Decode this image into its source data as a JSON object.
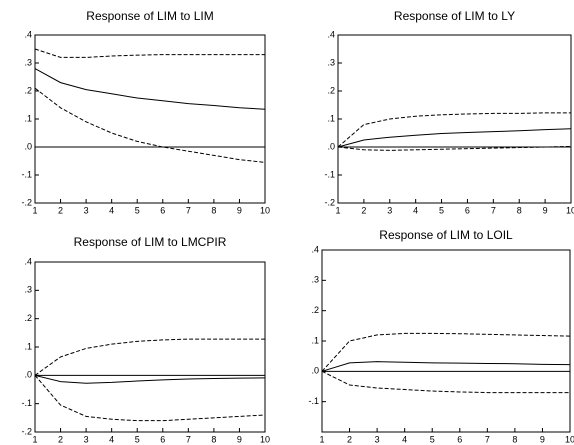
{
  "chart_data": [
    {
      "type": "line",
      "title": "Response of LIM to LIM",
      "x": [
        1,
        2,
        3,
        4,
        5,
        6,
        7,
        8,
        9,
        10
      ],
      "xlim": [
        1,
        10
      ],
      "xticks": [
        1,
        2,
        3,
        4,
        5,
        6,
        7,
        8,
        9,
        10
      ],
      "ylim": [
        -0.2,
        0.4
      ],
      "yticks": [
        {
          "value": 0.4,
          "label": ".4"
        },
        {
          "value": 0.3,
          "label": ".3"
        },
        {
          "value": 0.2,
          "label": ".2"
        },
        {
          "value": 0.1,
          "label": ".1"
        },
        {
          "value": 0,
          "label": ".0"
        },
        {
          "value": -0.1,
          "label": "-.1"
        },
        {
          "value": -0.2,
          "label": "-.2"
        }
      ],
      "series": [
        {
          "color": "#000000",
          "dashed": false,
          "values": [
            0.28,
            0.23,
            0.205,
            0.19,
            0.175,
            0.165,
            0.155,
            0.148,
            0.14,
            0.135
          ]
        },
        {
          "color": "#000000",
          "dashed": true,
          "values": [
            0.35,
            0.32,
            0.32,
            0.325,
            0.328,
            0.33,
            0.33,
            0.33,
            0.33,
            0.33
          ]
        },
        {
          "color": "#000000",
          "dashed": true,
          "values": [
            0.21,
            0.14,
            0.09,
            0.05,
            0.02,
            0.0,
            -0.015,
            -0.03,
            -0.045,
            -0.055
          ]
        }
      ]
    },
    {
      "type": "line",
      "title": "Response of LIM to LY",
      "x": [
        1,
        2,
        3,
        4,
        5,
        6,
        7,
        8,
        9,
        10
      ],
      "xlim": [
        1,
        10
      ],
      "xticks": [
        1,
        2,
        3,
        4,
        5,
        6,
        7,
        8,
        9,
        10
      ],
      "ylim": [
        -0.2,
        0.4
      ],
      "yticks": [
        {
          "value": 0.4,
          "label": ".4"
        },
        {
          "value": 0.3,
          "label": ".3"
        },
        {
          "value": 0.2,
          "label": ".2"
        },
        {
          "value": 0.1,
          "label": ".1"
        },
        {
          "value": 0,
          "label": ".0"
        },
        {
          "value": -0.1,
          "label": "-.1"
        },
        {
          "value": -0.2,
          "label": "-.2"
        }
      ],
      "series": [
        {
          "color": "#000000",
          "dashed": false,
          "values": [
            0.0,
            0.025,
            0.035,
            0.042,
            0.048,
            0.052,
            0.055,
            0.058,
            0.062,
            0.065
          ]
        },
        {
          "color": "#000000",
          "dashed": true,
          "values": [
            0.0,
            0.08,
            0.1,
            0.11,
            0.115,
            0.118,
            0.12,
            0.12,
            0.122,
            0.122
          ]
        },
        {
          "color": "#000000",
          "dashed": true,
          "values": [
            0.0,
            -0.01,
            -0.012,
            -0.01,
            -0.008,
            -0.006,
            -0.004,
            -0.002,
            0.0,
            0.002
          ]
        }
      ]
    },
    {
      "type": "line",
      "title": "Response of LIM to LMCPIR",
      "x": [
        1,
        2,
        3,
        4,
        5,
        6,
        7,
        8,
        9,
        10
      ],
      "xlim": [
        1,
        10
      ],
      "xticks": [
        1,
        2,
        3,
        4,
        5,
        6,
        7,
        8,
        9,
        10
      ],
      "ylim": [
        -0.2,
        0.4
      ],
      "yticks": [
        {
          "value": 0.4,
          "label": ".4"
        },
        {
          "value": 0.3,
          "label": ".3"
        },
        {
          "value": 0.2,
          "label": ".2"
        },
        {
          "value": 0.1,
          "label": ".1"
        },
        {
          "value": 0,
          "label": ".0"
        },
        {
          "value": -0.1,
          "label": "-.1"
        },
        {
          "value": -0.2,
          "label": "-.2"
        }
      ],
      "series": [
        {
          "color": "#000000",
          "dashed": false,
          "values": [
            0.0,
            -0.022,
            -0.028,
            -0.025,
            -0.02,
            -0.016,
            -0.013,
            -0.011,
            -0.01,
            -0.009
          ]
        },
        {
          "color": "#000000",
          "dashed": true,
          "values": [
            0.0,
            0.065,
            0.095,
            0.11,
            0.12,
            0.125,
            0.128,
            0.128,
            0.128,
            0.128
          ]
        },
        {
          "color": "#000000",
          "dashed": true,
          "values": [
            0.0,
            -0.105,
            -0.145,
            -0.155,
            -0.16,
            -0.16,
            -0.155,
            -0.15,
            -0.145,
            -0.14
          ]
        }
      ]
    },
    {
      "type": "line",
      "title": "Response of LIM to LOIL",
      "x": [
        1,
        2,
        3,
        4,
        5,
        6,
        7,
        8,
        9,
        10
      ],
      "xlim": [
        1,
        10
      ],
      "xticks": [
        1,
        2,
        3,
        4,
        5,
        6,
        7,
        8,
        9,
        10
      ],
      "ylim": [
        -0.2,
        0.4
      ],
      "yticks": [
        {
          "value": 0.4,
          "label": ".4"
        },
        {
          "value": 0.3,
          "label": ".3"
        },
        {
          "value": 0.2,
          "label": ".2"
        },
        {
          "value": 0.1,
          "label": ".1"
        },
        {
          "value": 0,
          "label": ".0"
        },
        {
          "value": -0.1,
          "label": "-.1"
        }
      ],
      "series": [
        {
          "color": "#000000",
          "dashed": false,
          "values": [
            0.0,
            0.028,
            0.032,
            0.03,
            0.028,
            0.027,
            0.026,
            0.025,
            0.023,
            0.022
          ]
        },
        {
          "color": "#000000",
          "dashed": true,
          "values": [
            0.0,
            0.1,
            0.12,
            0.125,
            0.125,
            0.124,
            0.122,
            0.12,
            0.118,
            0.116
          ]
        },
        {
          "color": "#000000",
          "dashed": true,
          "values": [
            0.0,
            -0.045,
            -0.055,
            -0.06,
            -0.065,
            -0.068,
            -0.07,
            -0.07,
            -0.07,
            -0.07
          ]
        }
      ]
    }
  ]
}
